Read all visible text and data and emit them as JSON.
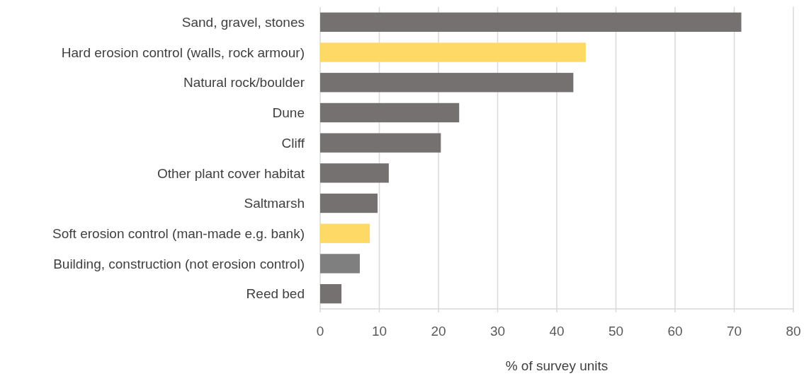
{
  "chart_data": {
    "type": "bar",
    "orientation": "horizontal",
    "xlabel": "% of survey units",
    "categories": [
      "Sand, gravel, stones",
      "Hard erosion control (walls, rock armour)",
      "Natural rock/boulder",
      "Dune",
      "Cliff",
      "Other plant cover habitat",
      "Saltmarsh",
      "Soft erosion control (man-made e.g. bank)",
      "Building, construction (not erosion control)",
      "Reed bed"
    ],
    "values": [
      71.2,
      44.9,
      42.8,
      23.5,
      20.4,
      11.6,
      9.7,
      8.4,
      6.7,
      3.6
    ],
    "colors": [
      "#767171",
      "#ffd966",
      "#767171",
      "#767171",
      "#767171",
      "#767171",
      "#767171",
      "#ffd966",
      "#7f7f7f",
      "#767171"
    ],
    "xlim": [
      0,
      80
    ],
    "xticks": [
      0,
      10,
      20,
      30,
      40,
      50,
      60,
      70,
      80
    ],
    "grid": "x"
  }
}
